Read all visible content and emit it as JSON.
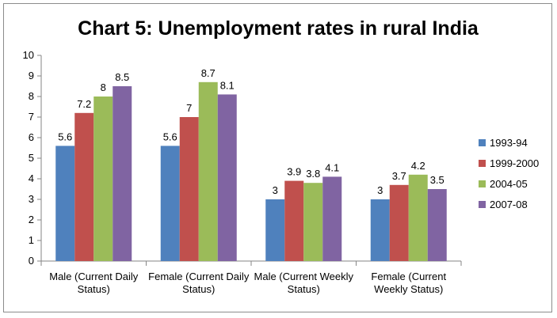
{
  "chart_data": {
    "type": "bar",
    "title": "Chart 5: Unemployment rates in rural India",
    "categories": [
      [
        "Male (Current  Daily",
        "Status)"
      ],
      [
        "Female (Current  Daily",
        "Status)"
      ],
      [
        "Male (Current  Weekly",
        "Status)"
      ],
      [
        "Female (Current",
        "Weekly Status)"
      ]
    ],
    "series": [
      {
        "name": "1993-94",
        "color": "#4f81bd",
        "values": [
          5.6,
          5.6,
          3,
          3
        ],
        "labels": [
          "5.6",
          "5.6",
          "3",
          "3"
        ]
      },
      {
        "name": "1999-2000",
        "color": "#c0504d",
        "values": [
          7.2,
          7,
          3.9,
          3.7
        ],
        "labels": [
          "7.2",
          "7",
          "3.9",
          "3.7"
        ]
      },
      {
        "name": "2004-05",
        "color": "#9bbb59",
        "values": [
          8,
          8.7,
          3.8,
          4.2
        ],
        "labels": [
          "8",
          "8.7",
          "3.8",
          "4.2"
        ]
      },
      {
        "name": "2007-08",
        "color": "#8064a2",
        "values": [
          8.5,
          8.1,
          4.1,
          3.5
        ],
        "labels": [
          "8.5",
          "8.1",
          "4.1",
          "3.5"
        ]
      }
    ],
    "ylim": [
      0,
      10
    ],
    "yticks": [
      "0",
      "1",
      "2",
      "3",
      "4",
      "5",
      "6",
      "7",
      "8",
      "9",
      "10"
    ],
    "grid": false,
    "legend_position": "right"
  }
}
